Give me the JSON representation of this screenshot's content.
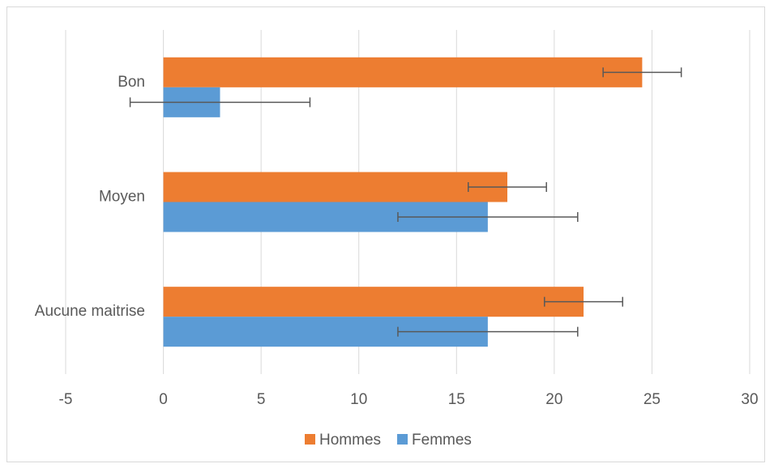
{
  "chart_data": {
    "type": "bar",
    "orientation": "horizontal",
    "categories": [
      "Bon",
      "Moyen",
      "Aucune maitrise"
    ],
    "series": [
      {
        "name": "Hommes",
        "color": "#ED7D31",
        "values": [
          24.5,
          17.6,
          21.5
        ],
        "error": [
          2.0,
          2.0,
          2.0
        ]
      },
      {
        "name": "Femmes",
        "color": "#5B9BD5",
        "values": [
          2.9,
          16.6,
          16.6
        ],
        "error": [
          4.6,
          4.6,
          4.6
        ]
      }
    ],
    "xlim": [
      -5,
      30
    ],
    "xticks": [
      -5,
      0,
      5,
      10,
      15,
      20,
      25,
      30
    ],
    "grid": true,
    "legend_position": "bottom"
  }
}
